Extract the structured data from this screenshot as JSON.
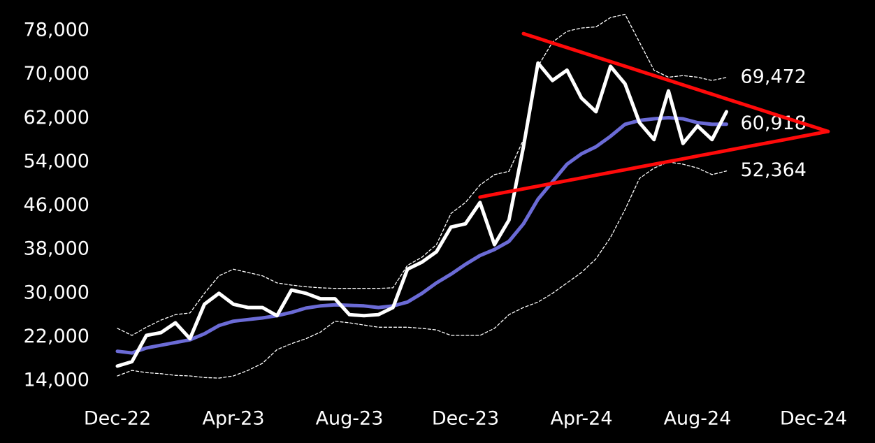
{
  "chart_data": {
    "type": "line",
    "background": "#000000",
    "categories": [
      "Dec-22",
      null,
      null,
      null,
      null,
      null,
      null,
      null,
      "Apr-23",
      null,
      null,
      null,
      null,
      null,
      null,
      null,
      "Aug-23",
      null,
      null,
      null,
      null,
      null,
      null,
      null,
      "Dec-23",
      null,
      null,
      null,
      null,
      null,
      null,
      null,
      "Apr-24",
      null,
      null,
      null,
      null,
      null,
      null,
      null,
      "Aug-24",
      null,
      null,
      null,
      null,
      null,
      null,
      null,
      "Dec-24",
      null
    ],
    "ylim": [
      14000,
      78000
    ],
    "yticks": [
      {
        "value": 14000,
        "label": "14,000"
      },
      {
        "value": 22000,
        "label": "22,000"
      },
      {
        "value": 30000,
        "label": "30,000"
      },
      {
        "value": 38000,
        "label": "38,000"
      },
      {
        "value": 46000,
        "label": "46,000"
      },
      {
        "value": 54000,
        "label": "54,000"
      },
      {
        "value": 62000,
        "label": "62,000"
      },
      {
        "value": 70000,
        "label": "70,000"
      },
      {
        "value": 78000,
        "label": "78,000"
      }
    ],
    "series": [
      {
        "color": "#ffffff",
        "style": "dashed",
        "values": [
          23600,
          22300,
          23800,
          25100,
          26100,
          26400,
          30000,
          33200,
          34400,
          33800,
          33200,
          31900,
          31500,
          31200,
          31000,
          30900,
          30900,
          30900,
          30900,
          31000,
          35100,
          36600,
          38900,
          44600,
          46600,
          49800,
          51700,
          52300,
          58100,
          71500,
          75900,
          77900,
          78500,
          78700,
          80400,
          81000,
          75900,
          70800,
          69500,
          69800,
          69500,
          68900,
          69472,
          null,
          null,
          null,
          null,
          null,
          null,
          null
        ],
        "value_labels": [
          null,
          null,
          null,
          null,
          null,
          null,
          null,
          null,
          null,
          null,
          null,
          null,
          null,
          null,
          null,
          null,
          null,
          null,
          null,
          null,
          null,
          null,
          null,
          null,
          null,
          null,
          null,
          null,
          null,
          null,
          null,
          null,
          null,
          null,
          null,
          null,
          null,
          null,
          null,
          null,
          null,
          null,
          "69,472",
          null,
          null,
          null,
          null,
          null,
          null,
          null
        ]
      },
      {
        "color": "#ffffff",
        "style": "dashed",
        "values": [
          14900,
          15900,
          15500,
          15300,
          15000,
          14900,
          14600,
          14500,
          14900,
          15900,
          17200,
          19700,
          20800,
          21700,
          22900,
          24900,
          24600,
          24200,
          23800,
          23800,
          23800,
          23600,
          23300,
          22300,
          22300,
          22300,
          23600,
          26100,
          27400,
          28400,
          30000,
          31900,
          33800,
          36300,
          40200,
          45300,
          51000,
          52900,
          54000,
          53600,
          52900,
          51700,
          52364,
          null,
          null,
          null,
          null,
          null,
          null,
          null
        ],
        "value_labels": [
          null,
          null,
          null,
          null,
          null,
          null,
          null,
          null,
          null,
          null,
          null,
          null,
          null,
          null,
          null,
          null,
          null,
          null,
          null,
          null,
          null,
          null,
          null,
          null,
          null,
          null,
          null,
          null,
          null,
          null,
          null,
          null,
          null,
          null,
          null,
          null,
          null,
          null,
          null,
          null,
          null,
          null,
          "52,364",
          null,
          null,
          null,
          null,
          null,
          null,
          null
        ]
      },
      {
        "color": "#6b6bd6",
        "style": "solid",
        "values": [
          19400,
          19100,
          20000,
          20500,
          21000,
          21500,
          22600,
          24100,
          24900,
          25200,
          25500,
          25900,
          26500,
          27300,
          27700,
          27900,
          27800,
          27700,
          27400,
          27700,
          28400,
          30000,
          31900,
          33500,
          35300,
          36900,
          38000,
          39500,
          42700,
          47200,
          50400,
          53600,
          55500,
          56800,
          58700,
          60900,
          61600,
          61900,
          62100,
          61900,
          61200,
          60900,
          60918,
          null,
          null,
          null,
          null,
          null,
          null,
          null
        ],
        "value_labels": [
          null,
          null,
          null,
          null,
          null,
          null,
          null,
          null,
          null,
          null,
          null,
          null,
          null,
          null,
          null,
          null,
          null,
          null,
          null,
          null,
          null,
          null,
          null,
          null,
          null,
          null,
          null,
          null,
          null,
          null,
          null,
          null,
          null,
          null,
          null,
          null,
          null,
          null,
          null,
          null,
          null,
          null,
          "60,918",
          null,
          null,
          null,
          null,
          null,
          null,
          null
        ]
      },
      {
        "color": "#ffffff",
        "style": "solid",
        "values": [
          16700,
          17500,
          22300,
          22800,
          24600,
          21700,
          28000,
          30000,
          28000,
          27400,
          27400,
          25900,
          30600,
          30000,
          29000,
          29000,
          26100,
          25900,
          26100,
          27400,
          34400,
          35700,
          37600,
          42100,
          42700,
          46600,
          38900,
          43400,
          56800,
          72100,
          68900,
          70800,
          65700,
          63200,
          71500,
          68300,
          61200,
          58100,
          67000,
          57400,
          60600,
          58100,
          63200,
          null,
          null,
          null,
          null,
          null,
          null,
          null
        ]
      },
      {
        "color": "#ff0a0a",
        "style": "solid",
        "values": [
          null,
          null,
          null,
          null,
          null,
          null,
          null,
          null,
          null,
          null,
          null,
          null,
          null,
          null,
          null,
          null,
          null,
          null,
          null,
          null,
          null,
          null,
          null,
          null,
          null,
          null,
          null,
          null,
          77470,
          76619,
          75767,
          74916,
          74064,
          73213,
          72362,
          71510,
          70659,
          69807,
          68956,
          68105,
          67253,
          66402,
          65550,
          64699,
          63848,
          62996,
          62145,
          61293,
          60442,
          59590
        ]
      },
      {
        "color": "#ff0a0a",
        "style": "solid",
        "values": [
          null,
          null,
          null,
          null,
          null,
          null,
          null,
          null,
          null,
          null,
          null,
          null,
          null,
          null,
          null,
          null,
          null,
          null,
          null,
          null,
          null,
          null,
          null,
          null,
          null,
          47590,
          48090,
          48590,
          49090,
          49590,
          50090,
          50590,
          51090,
          51590,
          52090,
          52590,
          53090,
          53590,
          54090,
          54590,
          55090,
          55590,
          56090,
          56590,
          57090,
          57590,
          58090,
          58590,
          59090,
          59590
        ]
      }
    ]
  }
}
